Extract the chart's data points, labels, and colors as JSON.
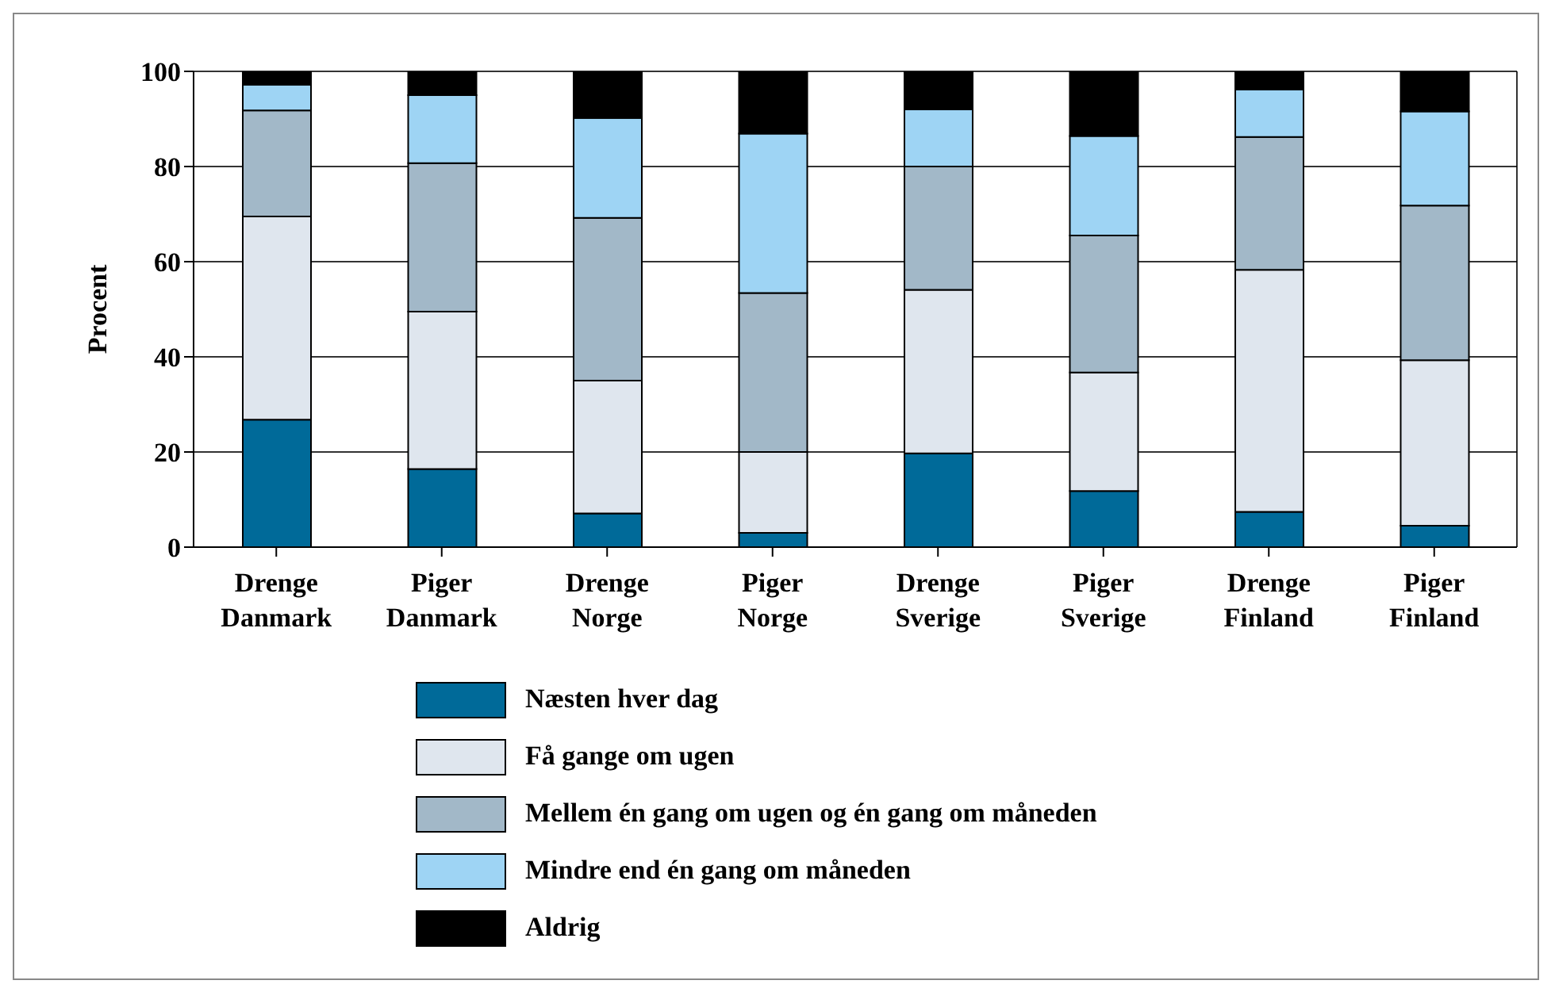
{
  "chart_data": {
    "type": "bar",
    "stacked": true,
    "ylabel": "Procent",
    "categories": [
      "Drenge Danmark",
      "Piger Danmark",
      "Drenge Norge",
      "Piger Norge",
      "Drenge Sverige",
      "Piger Sverige",
      "Drenge Finland",
      "Piger Finland"
    ],
    "series": [
      {
        "name": "Næsten hver dag",
        "color": "#006a99",
        "values": [
          26.8,
          16.4,
          7.1,
          3.0,
          19.7,
          11.8,
          7.4,
          4.5
        ]
      },
      {
        "name": "Få gange om ugen",
        "color": "#dfe6ee",
        "values": [
          42.7,
          33.1,
          27.9,
          17.0,
          34.4,
          24.9,
          50.9,
          34.8
        ]
      },
      {
        "name": "Mellem én gang om ugen og én gang om måneden",
        "color": "#a2b8c8",
        "values": [
          22.3,
          31.2,
          34.2,
          33.4,
          25.9,
          28.8,
          27.9,
          32.5
        ]
      },
      {
        "name": "Mindre end én gang om måneden",
        "color": "#9ed4f4",
        "values": [
          5.4,
          14.3,
          21.0,
          33.5,
          12.0,
          20.9,
          10.0,
          19.8
        ]
      },
      {
        "name": "Aldrig",
        "color": "#000000",
        "values": [
          2.8,
          5.0,
          9.8,
          13.1,
          8.0,
          13.6,
          3.8,
          8.4
        ]
      }
    ],
    "ylim": [
      0,
      100
    ],
    "yticks": [
      0,
      20,
      40,
      60,
      80,
      100
    ],
    "grid": "y",
    "legend": "bottom"
  }
}
